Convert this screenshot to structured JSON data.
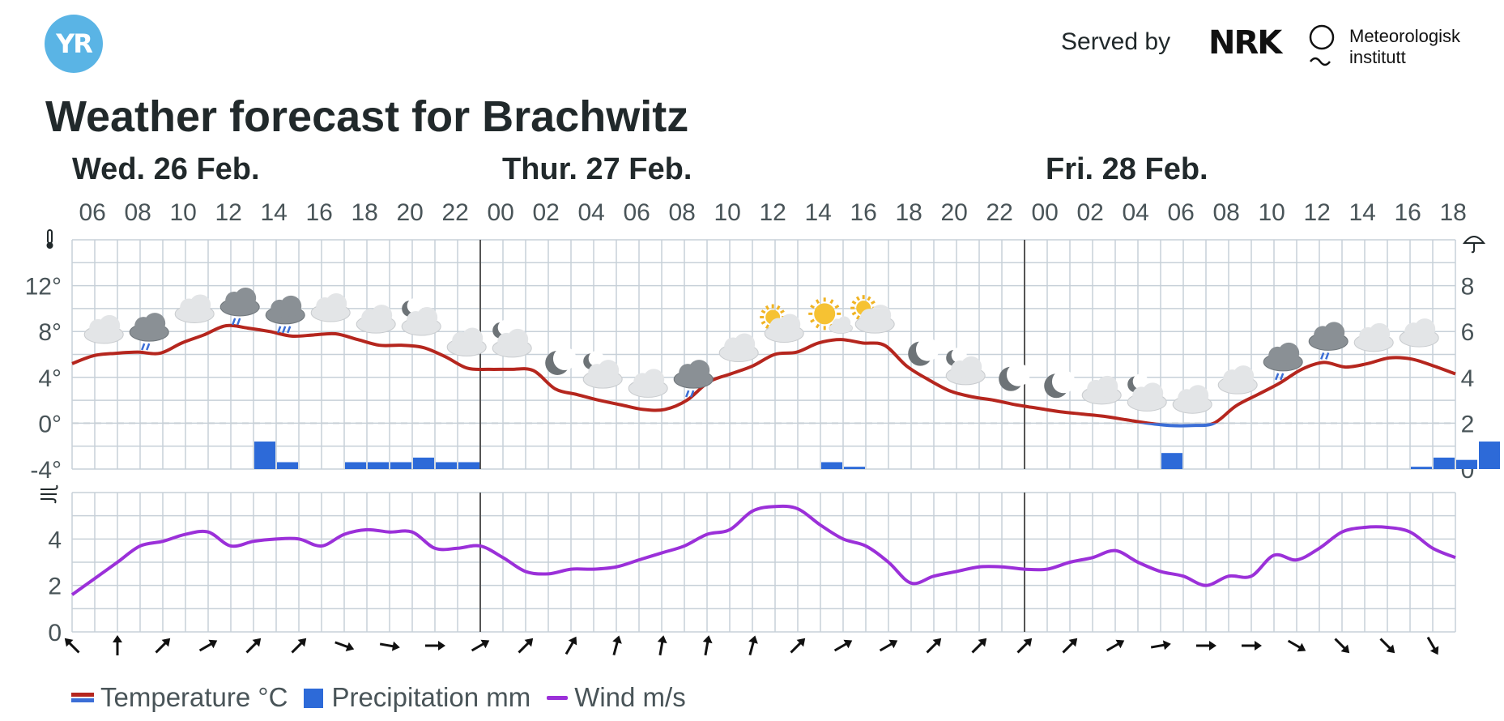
{
  "header": {
    "logo_text": "YR",
    "served_by": "Served by",
    "nrk_logo": "NRK",
    "met_line1": "Meteorologisk",
    "met_line2": "institutt"
  },
  "title": "Weather forecast for Brachwitz",
  "days": [
    "Wed. 26 Feb.",
    "Thur. 27 Feb.",
    "Fri. 28 Feb."
  ],
  "colors": {
    "temperature": "#b5261e",
    "temperature_below_zero": "#3b6ed6",
    "precipitation": "#2d6ad8",
    "wind": "#9b30d9",
    "grid": "#c7d0d8"
  },
  "legend": {
    "temperature": "Temperature °C",
    "precipitation": "Precipitation mm",
    "wind": "Wind m/s"
  },
  "chart_data": [
    {
      "type": "line",
      "title": "",
      "x_hours_label": [
        "06",
        "08",
        "10",
        "12",
        "14",
        "16",
        "18",
        "20",
        "22",
        "00",
        "02",
        "04",
        "06",
        "08",
        "10",
        "12",
        "14",
        "16",
        "18",
        "20",
        "22",
        "00",
        "02",
        "04",
        "06",
        "08",
        "10",
        "12",
        "14",
        "16",
        "18"
      ],
      "yticks_left": [
        "12°",
        "8°",
        "4°",
        "0°",
        "-4°"
      ],
      "yticks_right": [
        "8",
        "6",
        "4",
        "2",
        "0"
      ],
      "ylim_temperature": [
        -4,
        16
      ],
      "ylim_precipitation": [
        0,
        10
      ],
      "temperature": [
        5.2,
        5.9,
        6.1,
        6.2,
        6.1,
        7.0,
        7.7,
        8.5,
        8.3,
        8.0,
        7.6,
        7.7,
        7.8,
        7.3,
        6.8,
        6.8,
        6.6,
        5.8,
        4.8,
        4.7,
        4.7,
        4.6,
        3.0,
        2.5,
        2.0,
        1.6,
        1.2,
        1.2,
        2.0,
        3.6,
        4.3,
        5.0,
        6.0,
        6.2,
        7.0,
        7.3,
        7.0,
        6.8,
        5.0,
        3.8,
        2.8,
        2.3,
        2.0,
        1.6,
        1.3,
        1.0,
        0.8,
        0.6,
        0.3,
        0.0,
        -0.2,
        -0.2,
        0.0,
        1.5,
        2.5,
        3.5,
        4.7,
        5.3,
        4.9,
        5.2,
        5.7,
        5.6,
        5.0,
        4.3
      ],
      "precipitation_hours": [
        8,
        9,
        12,
        13,
        14,
        15,
        16,
        17,
        33,
        34,
        48,
        59,
        60,
        61,
        62
      ],
      "precipitation": [
        1.2,
        0.3,
        0.3,
        0.3,
        0.3,
        0.5,
        0.3,
        0.3,
        0.3,
        0.1,
        0.7,
        0.1,
        0.5,
        0.4,
        1.2
      ],
      "weather_icons": [
        "cloudy",
        "rain",
        "cloudy",
        "rain",
        "heavy-rain",
        "cloudy",
        "cloudy",
        "partly-cloudy-night",
        "cloudy",
        "partly-cloudy-night",
        "clear-night",
        "partly-cloudy-night",
        "cloudy",
        "rain",
        "cloudy",
        "partly-cloudy-day",
        "fair-day",
        "partly-cloudy-day",
        "clear-night",
        "partly-cloudy-night",
        "clear-night",
        "clear-night",
        "cloudy",
        "partly-cloudy-night",
        "cloudy",
        "cloudy",
        "rain",
        "rain",
        "cloudy",
        "cloudy"
      ]
    },
    {
      "type": "line",
      "title": "",
      "yticks": [
        "4",
        "2",
        "0"
      ],
      "ylim": [
        0,
        6
      ],
      "wind": [
        1.6,
        2.3,
        3.0,
        3.7,
        3.9,
        4.2,
        4.3,
        3.7,
        3.9,
        4.0,
        4.0,
        3.7,
        4.2,
        4.4,
        4.3,
        4.3,
        3.6,
        3.6,
        3.7,
        3.2,
        2.6,
        2.5,
        2.7,
        2.7,
        2.8,
        3.1,
        3.4,
        3.7,
        4.2,
        4.4,
        5.2,
        5.4,
        5.3,
        4.6,
        4.0,
        3.7,
        3.0,
        2.1,
        2.4,
        2.6,
        2.8,
        2.8,
        2.7,
        2.7,
        3.0,
        3.2,
        3.5,
        3.0,
        2.6,
        2.4,
        2.0,
        2.4,
        2.4,
        3.3,
        3.1,
        3.6,
        4.3,
        4.5,
        4.5,
        4.3,
        3.6,
        3.2
      ],
      "wind_directions_deg": [
        315,
        0,
        45,
        60,
        45,
        45,
        110,
        100,
        90,
        60,
        45,
        30,
        15,
        10,
        10,
        15,
        45,
        60,
        60,
        45,
        45,
        45,
        45,
        60,
        80,
        90,
        90,
        120,
        135,
        135,
        150
      ]
    }
  ]
}
